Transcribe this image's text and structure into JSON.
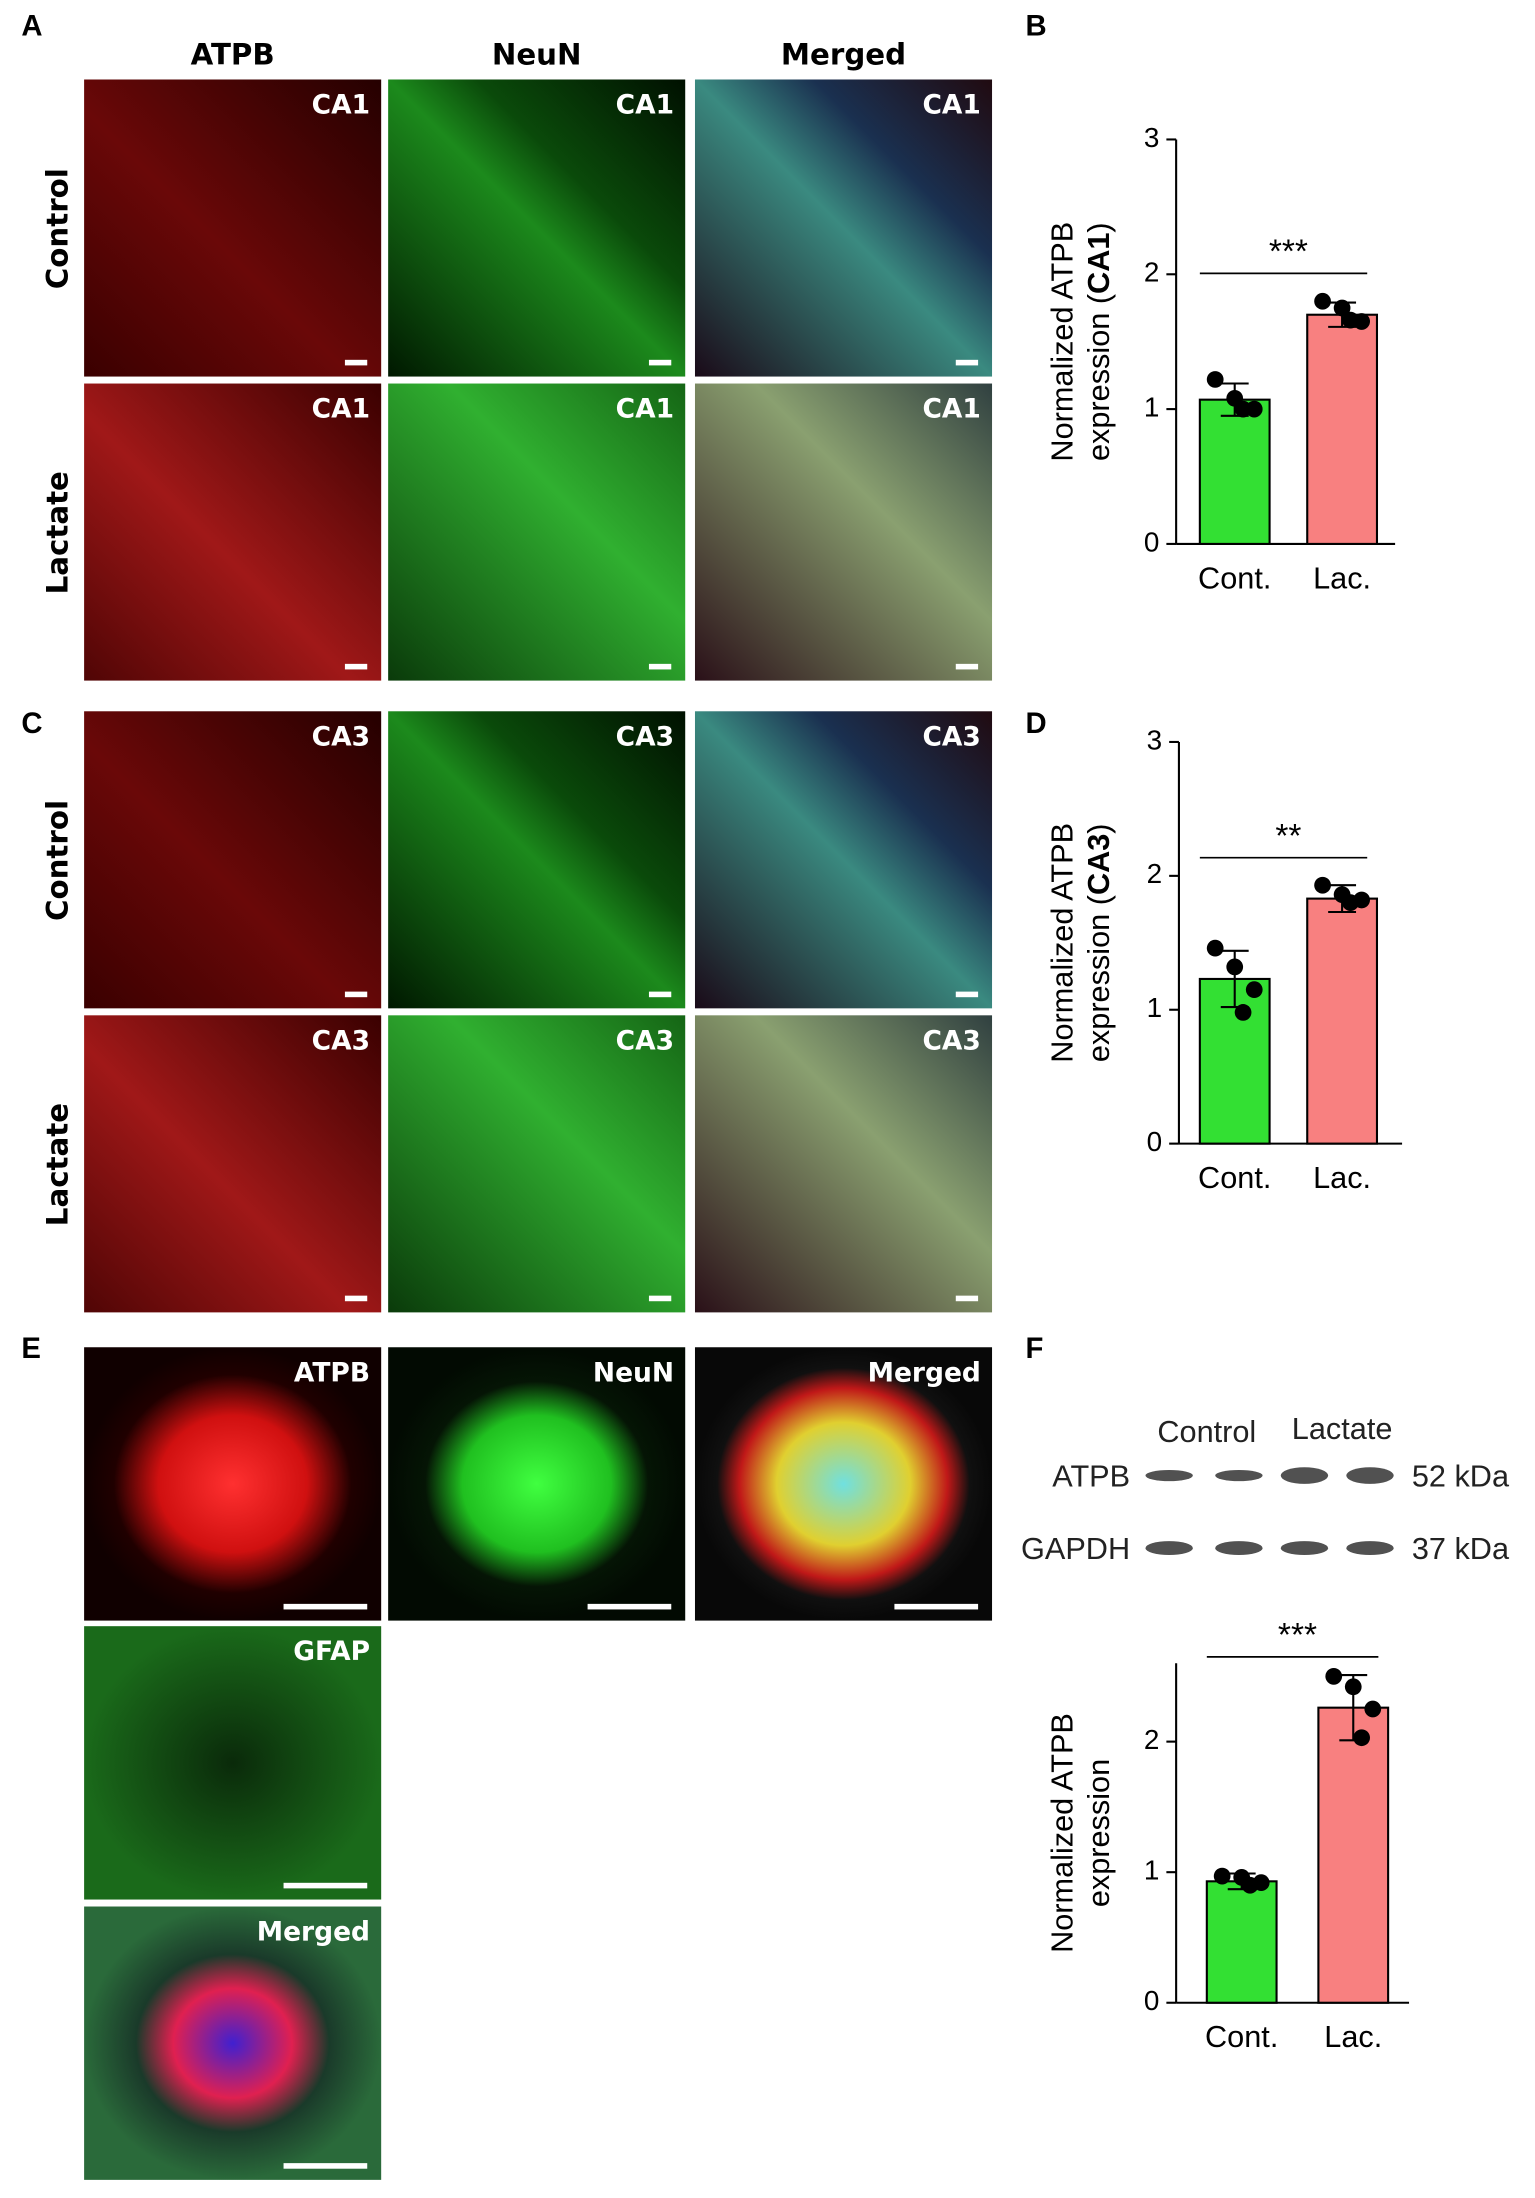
{
  "figure": {
    "panel_letters": [
      "A",
      "B",
      "C",
      "D",
      "E",
      "F"
    ],
    "a": {
      "columns": [
        "ATPB",
        "NeuN",
        "Merged"
      ],
      "rows": [
        "Control",
        "Lactate"
      ],
      "region": "CA1"
    },
    "c": {
      "rows": [
        "Control",
        "Lactate"
      ],
      "region": "CA3"
    },
    "e": {
      "labels": [
        "ATPB",
        "NeuN",
        "Merged",
        "GFAP",
        "Merged"
      ]
    },
    "f_blot": {
      "groups": [
        "Control",
        "Lactate"
      ],
      "bands": [
        "ATPB",
        "GAPDH"
      ],
      "sizes": [
        "52 kDa",
        "37 kDa"
      ]
    }
  },
  "chart_data": [
    {
      "type": "bar",
      "ylabel": [
        "Normalized ATPB",
        "expression (",
        "CA1",
        ")"
      ],
      "categories": [
        "Cont.",
        "Lac."
      ],
      "values": [
        1.07,
        1.7
      ],
      "errors": [
        0.12,
        0.09
      ],
      "colors": [
        "#33e033",
        "#f88080"
      ],
      "points": [
        [
          1.22,
          1.08,
          1.0,
          1.0
        ],
        [
          1.8,
          1.75,
          1.65,
          1.66
        ]
      ],
      "ylim": [
        0,
        3
      ],
      "yticks": [
        0,
        1,
        2,
        3
      ],
      "significance": "***"
    },
    {
      "type": "bar",
      "ylabel": [
        "Normalized ATPB",
        "expression (",
        "CA3",
        ")"
      ],
      "categories": [
        "Cont.",
        "Lac."
      ],
      "values": [
        1.23,
        1.83
      ],
      "errors": [
        0.21,
        0.1
      ],
      "colors": [
        "#33e033",
        "#f88080"
      ],
      "points": [
        [
          1.46,
          1.32,
          1.15,
          0.98
        ],
        [
          1.93,
          1.86,
          1.82,
          1.8
        ]
      ],
      "ylim": [
        0,
        3
      ],
      "yticks": [
        0,
        1,
        2,
        3
      ],
      "significance": "**"
    },
    {
      "type": "bar",
      "ylabel": [
        "Normalized ATPB",
        "expression"
      ],
      "categories": [
        "Cont.",
        "Lac."
      ],
      "values": [
        0.93,
        2.26
      ],
      "errors": [
        0.06,
        0.25
      ],
      "colors": [
        "#33e033",
        "#f88080"
      ],
      "points": [
        [
          0.97,
          0.96,
          0.92,
          0.9
        ],
        [
          2.5,
          2.42,
          2.25,
          2.03
        ]
      ],
      "ylim": [
        0,
        2.6
      ],
      "yticks": [
        0,
        1,
        2
      ],
      "significance": "***"
    }
  ]
}
